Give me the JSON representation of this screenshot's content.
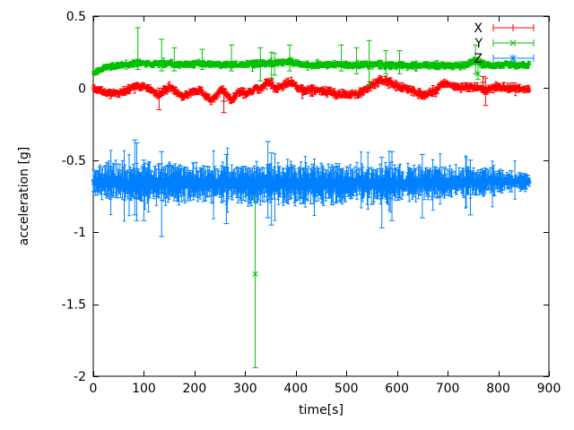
{
  "figure": {
    "background": "#ffffff",
    "border_color": "#000000",
    "text_color": "#000000"
  },
  "chart_data": {
    "type": "scatter",
    "style": "points-with-errorbars",
    "title": "",
    "xlabel": "time[s]",
    "ylabel": "acceleration [g]",
    "xlim": [
      0,
      900
    ],
    "ylim": [
      -2,
      0.5
    ],
    "xticks": [
      0,
      100,
      200,
      300,
      400,
      500,
      600,
      700,
      800,
      900
    ],
    "xtick_labels": [
      "0",
      "100",
      "200",
      "300",
      "400",
      "500",
      "600",
      "700",
      "800",
      "900"
    ],
    "yticks": [
      0.5,
      0,
      -0.5,
      -1,
      -1.5,
      -2
    ],
    "ytick_labels": [
      "0.5",
      "0",
      "-0.5",
      "-1",
      "-1.5",
      "-2"
    ],
    "grid": false,
    "legend_position": "top-right-inside",
    "t_range": [
      0,
      862
    ],
    "sample_step": 1.2,
    "series": [
      {
        "name": "X",
        "color": "#ff0000",
        "marker": "plus",
        "seed": 11,
        "scatter": 0.016,
        "errbar": 0.018,
        "envelope": [
          [
            0,
            1
          ],
          [
            862,
            1
          ]
        ],
        "trend": [
          [
            0,
            0.0
          ],
          [
            10,
            -0.01
          ],
          [
            25,
            -0.035
          ],
          [
            45,
            -0.04
          ],
          [
            60,
            -0.025
          ],
          [
            75,
            0.0
          ],
          [
            90,
            0.02
          ],
          [
            105,
            0.0
          ],
          [
            120,
            -0.03
          ],
          [
            130,
            -0.05
          ],
          [
            140,
            -0.015
          ],
          [
            150,
            0.01
          ],
          [
            162,
            -0.02
          ],
          [
            175,
            -0.055
          ],
          [
            188,
            -0.035
          ],
          [
            200,
            -0.02
          ],
          [
            212,
            -0.02
          ],
          [
            222,
            -0.05
          ],
          [
            232,
            -0.085
          ],
          [
            242,
            -0.06
          ],
          [
            252,
            -0.005
          ],
          [
            262,
            -0.03
          ],
          [
            272,
            -0.09
          ],
          [
            282,
            -0.05
          ],
          [
            292,
            -0.02
          ],
          [
            302,
            -0.045
          ],
          [
            312,
            -0.02
          ],
          [
            322,
            -0.005
          ],
          [
            332,
            0.0
          ],
          [
            342,
            0.035
          ],
          [
            350,
            0.04
          ],
          [
            360,
            -0.005
          ],
          [
            370,
            0.005
          ],
          [
            380,
            0.03
          ],
          [
            390,
            0.045
          ],
          [
            398,
            0.02
          ],
          [
            408,
            -0.01
          ],
          [
            420,
            -0.015
          ],
          [
            435,
            -0.01
          ],
          [
            450,
            -0.015
          ],
          [
            465,
            -0.025
          ],
          [
            480,
            -0.04
          ],
          [
            495,
            -0.045
          ],
          [
            510,
            -0.045
          ],
          [
            525,
            -0.035
          ],
          [
            540,
            -0.005
          ],
          [
            555,
            0.03
          ],
          [
            565,
            0.05
          ],
          [
            580,
            0.05
          ],
          [
            592,
            0.03
          ],
          [
            604,
            0.005
          ],
          [
            616,
            -0.005
          ],
          [
            628,
            -0.01
          ],
          [
            640,
            -0.035
          ],
          [
            652,
            -0.045
          ],
          [
            664,
            -0.04
          ],
          [
            676,
            -0.015
          ],
          [
            688,
            0.02
          ],
          [
            700,
            0.03
          ],
          [
            710,
            0.015
          ],
          [
            722,
            0.005
          ],
          [
            735,
            0.01
          ],
          [
            748,
            0.005
          ],
          [
            762,
            0.0
          ],
          [
            775,
            -0.015
          ],
          [
            788,
            0.0
          ],
          [
            800,
            0.01
          ],
          [
            812,
            0.005
          ],
          [
            825,
            0.0
          ],
          [
            840,
            -0.005
          ],
          [
            862,
            -0.005
          ]
        ],
        "outliers": [
          [
            130,
            -0.06,
            -0.15,
            0.0
          ],
          [
            258,
            -0.09,
            -0.17,
            -0.03
          ],
          [
            770,
            0.04,
            -0.02,
            0.08
          ],
          [
            775,
            -0.02,
            -0.12,
            0.07
          ]
        ]
      },
      {
        "name": "Y",
        "color": "#00c000",
        "marker": "cross",
        "seed": 22,
        "scatter": 0.013,
        "errbar": 0.015,
        "envelope": [
          [
            0,
            1
          ],
          [
            862,
            1
          ]
        ],
        "trend": [
          [
            0,
            0.105
          ],
          [
            8,
            0.12
          ],
          [
            18,
            0.14
          ],
          [
            30,
            0.15
          ],
          [
            45,
            0.155
          ],
          [
            60,
            0.16
          ],
          [
            75,
            0.165
          ],
          [
            90,
            0.175
          ],
          [
            105,
            0.17
          ],
          [
            120,
            0.165
          ],
          [
            135,
            0.17
          ],
          [
            150,
            0.17
          ],
          [
            165,
            0.165
          ],
          [
            180,
            0.165
          ],
          [
            195,
            0.165
          ],
          [
            210,
            0.17
          ],
          [
            225,
            0.165
          ],
          [
            240,
            0.16
          ],
          [
            255,
            0.16
          ],
          [
            270,
            0.165
          ],
          [
            285,
            0.165
          ],
          [
            300,
            0.165
          ],
          [
            315,
            0.165
          ],
          [
            330,
            0.17
          ],
          [
            345,
            0.175
          ],
          [
            360,
            0.175
          ],
          [
            375,
            0.175
          ],
          [
            388,
            0.185
          ],
          [
            395,
            0.175
          ],
          [
            410,
            0.17
          ],
          [
            425,
            0.165
          ],
          [
            440,
            0.16
          ],
          [
            455,
            0.16
          ],
          [
            470,
            0.16
          ],
          [
            485,
            0.165
          ],
          [
            500,
            0.165
          ],
          [
            515,
            0.16
          ],
          [
            530,
            0.16
          ],
          [
            545,
            0.165
          ],
          [
            560,
            0.163
          ],
          [
            575,
            0.16
          ],
          [
            590,
            0.16
          ],
          [
            605,
            0.16
          ],
          [
            620,
            0.155
          ],
          [
            635,
            0.155
          ],
          [
            650,
            0.158
          ],
          [
            665,
            0.16
          ],
          [
            680,
            0.158
          ],
          [
            695,
            0.155
          ],
          [
            710,
            0.155
          ],
          [
            725,
            0.157
          ],
          [
            740,
            0.165
          ],
          [
            752,
            0.19
          ],
          [
            758,
            0.195
          ],
          [
            765,
            0.175
          ],
          [
            775,
            0.158
          ],
          [
            790,
            0.158
          ],
          [
            805,
            0.16
          ],
          [
            820,
            0.165
          ],
          [
            835,
            0.16
          ],
          [
            862,
            0.16
          ]
        ],
        "outliers": [
          [
            88,
            0.19,
            0.13,
            0.42
          ],
          [
            135,
            0.18,
            0.12,
            0.34
          ],
          [
            160,
            0.17,
            0.12,
            0.28
          ],
          [
            215,
            0.17,
            0.13,
            0.27
          ],
          [
            273,
            0.17,
            0.12,
            0.3
          ],
          [
            320,
            -1.29,
            -1.94,
            -0.62
          ],
          [
            330,
            0.17,
            0.05,
            0.28
          ],
          [
            352,
            0.16,
            0.07,
            0.25
          ],
          [
            358,
            0.17,
            0.09,
            0.24
          ],
          [
            388,
            0.19,
            0.12,
            0.3
          ],
          [
            490,
            0.17,
            0.12,
            0.3
          ],
          [
            520,
            0.16,
            0.1,
            0.28
          ],
          [
            545,
            0.165,
            0.02,
            0.33
          ],
          [
            578,
            0.16,
            0.1,
            0.26
          ],
          [
            605,
            0.16,
            0.1,
            0.26
          ],
          [
            755,
            0.2,
            0.1,
            0.3
          ],
          [
            760,
            0.1,
            0.06,
            0.16
          ]
        ]
      },
      {
        "name": "Z",
        "color": "#0080ff",
        "marker": "star",
        "seed": 33,
        "scatter": 0.03,
        "errbar": 0.1,
        "envelope": [
          [
            0,
            0.7
          ],
          [
            30,
            1
          ],
          [
            550,
            1
          ],
          [
            650,
            0.85
          ],
          [
            780,
            0.7
          ],
          [
            830,
            0.55
          ],
          [
            862,
            0.45
          ]
        ],
        "trend": [
          [
            0,
            -0.645
          ],
          [
            30,
            -0.655
          ],
          [
            60,
            -0.66
          ],
          [
            90,
            -0.658
          ],
          [
            120,
            -0.66
          ],
          [
            150,
            -0.655
          ],
          [
            180,
            -0.66
          ],
          [
            210,
            -0.662
          ],
          [
            240,
            -0.665
          ],
          [
            270,
            -0.66
          ],
          [
            300,
            -0.662
          ],
          [
            330,
            -0.665
          ],
          [
            360,
            -0.663
          ],
          [
            390,
            -0.66
          ],
          [
            420,
            -0.66
          ],
          [
            450,
            -0.662
          ],
          [
            480,
            -0.665
          ],
          [
            510,
            -0.663
          ],
          [
            540,
            -0.66
          ],
          [
            570,
            -0.662
          ],
          [
            600,
            -0.66
          ],
          [
            630,
            -0.658
          ],
          [
            660,
            -0.655
          ],
          [
            690,
            -0.653
          ],
          [
            720,
            -0.652
          ],
          [
            750,
            -0.65
          ],
          [
            780,
            -0.65
          ],
          [
            810,
            -0.648
          ],
          [
            840,
            -0.648
          ],
          [
            862,
            -0.648
          ]
        ],
        "outliers": [
          [
            82,
            -0.62,
            -0.88,
            -0.36
          ],
          [
            86,
            -0.66,
            -0.92,
            -0.38
          ],
          [
            100,
            -0.7,
            -0.92,
            -0.5
          ],
          [
            135,
            -0.68,
            -1.03,
            -0.44
          ],
          [
            263,
            -0.66,
            -0.94,
            -0.46
          ],
          [
            345,
            -0.64,
            -0.9,
            -0.37
          ],
          [
            352,
            -0.68,
            -0.95,
            -0.45
          ],
          [
            570,
            -0.66,
            -0.97,
            -0.48
          ],
          [
            590,
            -0.63,
            -0.92,
            -0.44
          ],
          [
            650,
            -0.65,
            -0.9,
            -0.46
          ],
          [
            745,
            -0.66,
            -0.88,
            -0.5
          ]
        ]
      }
    ]
  }
}
